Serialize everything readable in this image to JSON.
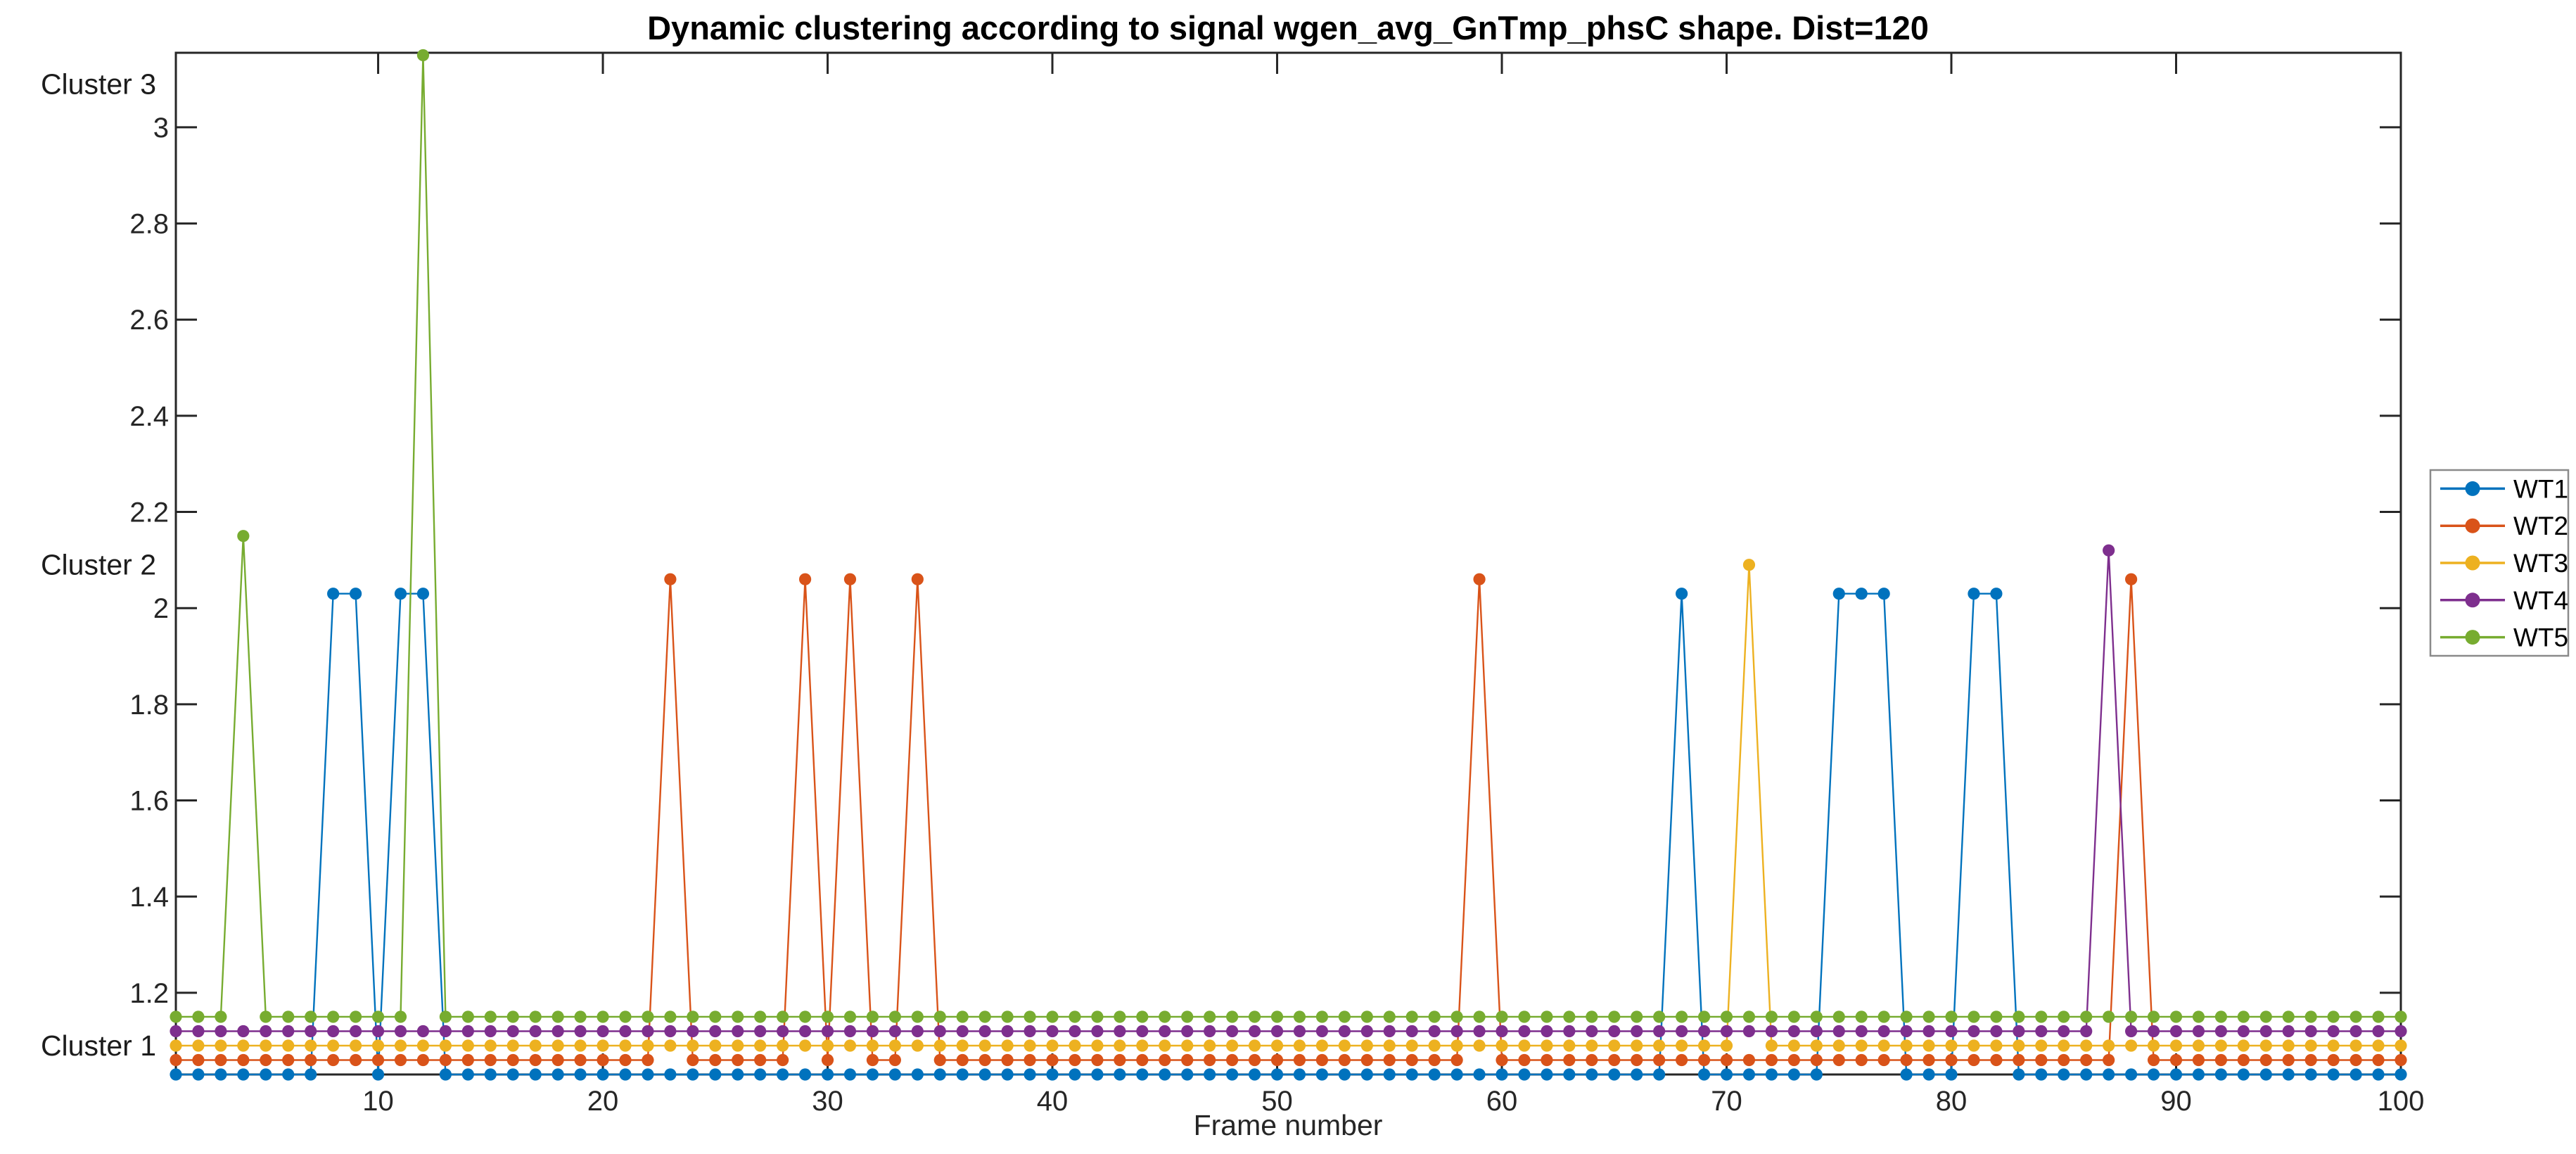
{
  "figure": {
    "background": "#ffffff"
  },
  "chart_data": {
    "type": "line",
    "title": "Dynamic clustering according to signal wgen_avg_GnTmp_phsC shape. Dist=120",
    "xlabel": "Frame number",
    "ylabel": "",
    "x_range": [
      1,
      100
    ],
    "y_range": [
      1.03,
      3.155
    ],
    "grid": false,
    "box": true,
    "tick_direction": "in",
    "axis_color": "#262626",
    "legend_position": "outside-right",
    "legend_border_color": "#8a8a8a",
    "marker": "circle",
    "x_ticks": [
      10,
      20,
      30,
      40,
      50,
      60,
      70,
      80,
      90,
      100
    ],
    "y_ticks_numeric": [
      1.2,
      1.4,
      1.6,
      1.8,
      2,
      2.2,
      2.4,
      2.6,
      2.8,
      3
    ],
    "y_ticks_cluster": [
      {
        "value": 1.09,
        "label": "Cluster 1"
      },
      {
        "value": 2.09,
        "label": "Cluster 2"
      },
      {
        "value": 3.09,
        "label": "Cluster 3"
      }
    ],
    "cluster_offset_per_series": 0.03,
    "series": [
      {
        "name": "WT1",
        "color": "#0072BD",
        "offset": 0.03,
        "clusters_by_frame": [
          1,
          1,
          1,
          1,
          1,
          1,
          1,
          2,
          2,
          1,
          2,
          2,
          1,
          1,
          1,
          1,
          1,
          1,
          1,
          1,
          1,
          1,
          1,
          1,
          1,
          1,
          1,
          1,
          1,
          1,
          1,
          1,
          1,
          1,
          1,
          1,
          1,
          1,
          1,
          1,
          1,
          1,
          1,
          1,
          1,
          1,
          1,
          1,
          1,
          1,
          1,
          1,
          1,
          1,
          1,
          1,
          1,
          1,
          1,
          1,
          1,
          1,
          1,
          1,
          1,
          1,
          1,
          2,
          1,
          1,
          1,
          1,
          1,
          1,
          2,
          2,
          2,
          1,
          1,
          1,
          2,
          2,
          1,
          1,
          1,
          1,
          1,
          1,
          1,
          1,
          1,
          1,
          1,
          1,
          1,
          1,
          1,
          1,
          1,
          1
        ]
      },
      {
        "name": "WT2",
        "color": "#D95319",
        "offset": 0.06,
        "clusters_by_frame": [
          1,
          1,
          1,
          1,
          1,
          1,
          1,
          1,
          1,
          1,
          1,
          1,
          1,
          1,
          1,
          1,
          1,
          1,
          1,
          1,
          1,
          1,
          2,
          1,
          1,
          1,
          1,
          1,
          2,
          1,
          2,
          1,
          1,
          2,
          1,
          1,
          1,
          1,
          1,
          1,
          1,
          1,
          1,
          1,
          1,
          1,
          1,
          1,
          1,
          1,
          1,
          1,
          1,
          1,
          1,
          1,
          1,
          1,
          2,
          1,
          1,
          1,
          1,
          1,
          1,
          1,
          1,
          1,
          1,
          1,
          1,
          1,
          1,
          1,
          1,
          1,
          1,
          1,
          1,
          1,
          1,
          1,
          1,
          1,
          1,
          1,
          1,
          2,
          1,
          1,
          1,
          1,
          1,
          1,
          1,
          1,
          1,
          1,
          1,
          1
        ]
      },
      {
        "name": "WT3",
        "color": "#EDB120",
        "offset": 0.09,
        "clusters_by_frame": [
          1,
          1,
          1,
          1,
          1,
          1,
          1,
          1,
          1,
          1,
          1,
          1,
          1,
          1,
          1,
          1,
          1,
          1,
          1,
          1,
          1,
          1,
          1,
          1,
          1,
          1,
          1,
          1,
          1,
          1,
          1,
          1,
          1,
          1,
          1,
          1,
          1,
          1,
          1,
          1,
          1,
          1,
          1,
          1,
          1,
          1,
          1,
          1,
          1,
          1,
          1,
          1,
          1,
          1,
          1,
          1,
          1,
          1,
          1,
          1,
          1,
          1,
          1,
          1,
          1,
          1,
          1,
          1,
          1,
          1,
          2,
          1,
          1,
          1,
          1,
          1,
          1,
          1,
          1,
          1,
          1,
          1,
          1,
          1,
          1,
          1,
          1,
          1,
          1,
          1,
          1,
          1,
          1,
          1,
          1,
          1,
          1,
          1,
          1,
          1
        ]
      },
      {
        "name": "WT4",
        "color": "#7E2F8E",
        "offset": 0.12,
        "clusters_by_frame": [
          1,
          1,
          1,
          1,
          1,
          1,
          1,
          1,
          1,
          1,
          1,
          1,
          1,
          1,
          1,
          1,
          1,
          1,
          1,
          1,
          1,
          1,
          1,
          1,
          1,
          1,
          1,
          1,
          1,
          1,
          1,
          1,
          1,
          1,
          1,
          1,
          1,
          1,
          1,
          1,
          1,
          1,
          1,
          1,
          1,
          1,
          1,
          1,
          1,
          1,
          1,
          1,
          1,
          1,
          1,
          1,
          1,
          1,
          1,
          1,
          1,
          1,
          1,
          1,
          1,
          1,
          1,
          1,
          1,
          1,
          1,
          1,
          1,
          1,
          1,
          1,
          1,
          1,
          1,
          1,
          1,
          1,
          1,
          1,
          1,
          1,
          2,
          1,
          1,
          1,
          1,
          1,
          1,
          1,
          1,
          1,
          1,
          1,
          1,
          1
        ]
      },
      {
        "name": "WT5",
        "color": "#77AC30",
        "offset": 0.15,
        "clusters_by_frame": [
          1,
          1,
          1,
          2,
          1,
          1,
          1,
          1,
          1,
          1,
          1,
          3,
          1,
          1,
          1,
          1,
          1,
          1,
          1,
          1,
          1,
          1,
          1,
          1,
          1,
          1,
          1,
          1,
          1,
          1,
          1,
          1,
          1,
          1,
          1,
          1,
          1,
          1,
          1,
          1,
          1,
          1,
          1,
          1,
          1,
          1,
          1,
          1,
          1,
          1,
          1,
          1,
          1,
          1,
          1,
          1,
          1,
          1,
          1,
          1,
          1,
          1,
          1,
          1,
          1,
          1,
          1,
          1,
          1,
          1,
          1,
          1,
          1,
          1,
          1,
          1,
          1,
          1,
          1,
          1,
          1,
          1,
          1,
          1,
          1,
          1,
          1,
          1,
          1,
          1,
          1,
          1,
          1,
          1,
          1,
          1,
          1,
          1,
          1,
          1
        ]
      }
    ]
  }
}
